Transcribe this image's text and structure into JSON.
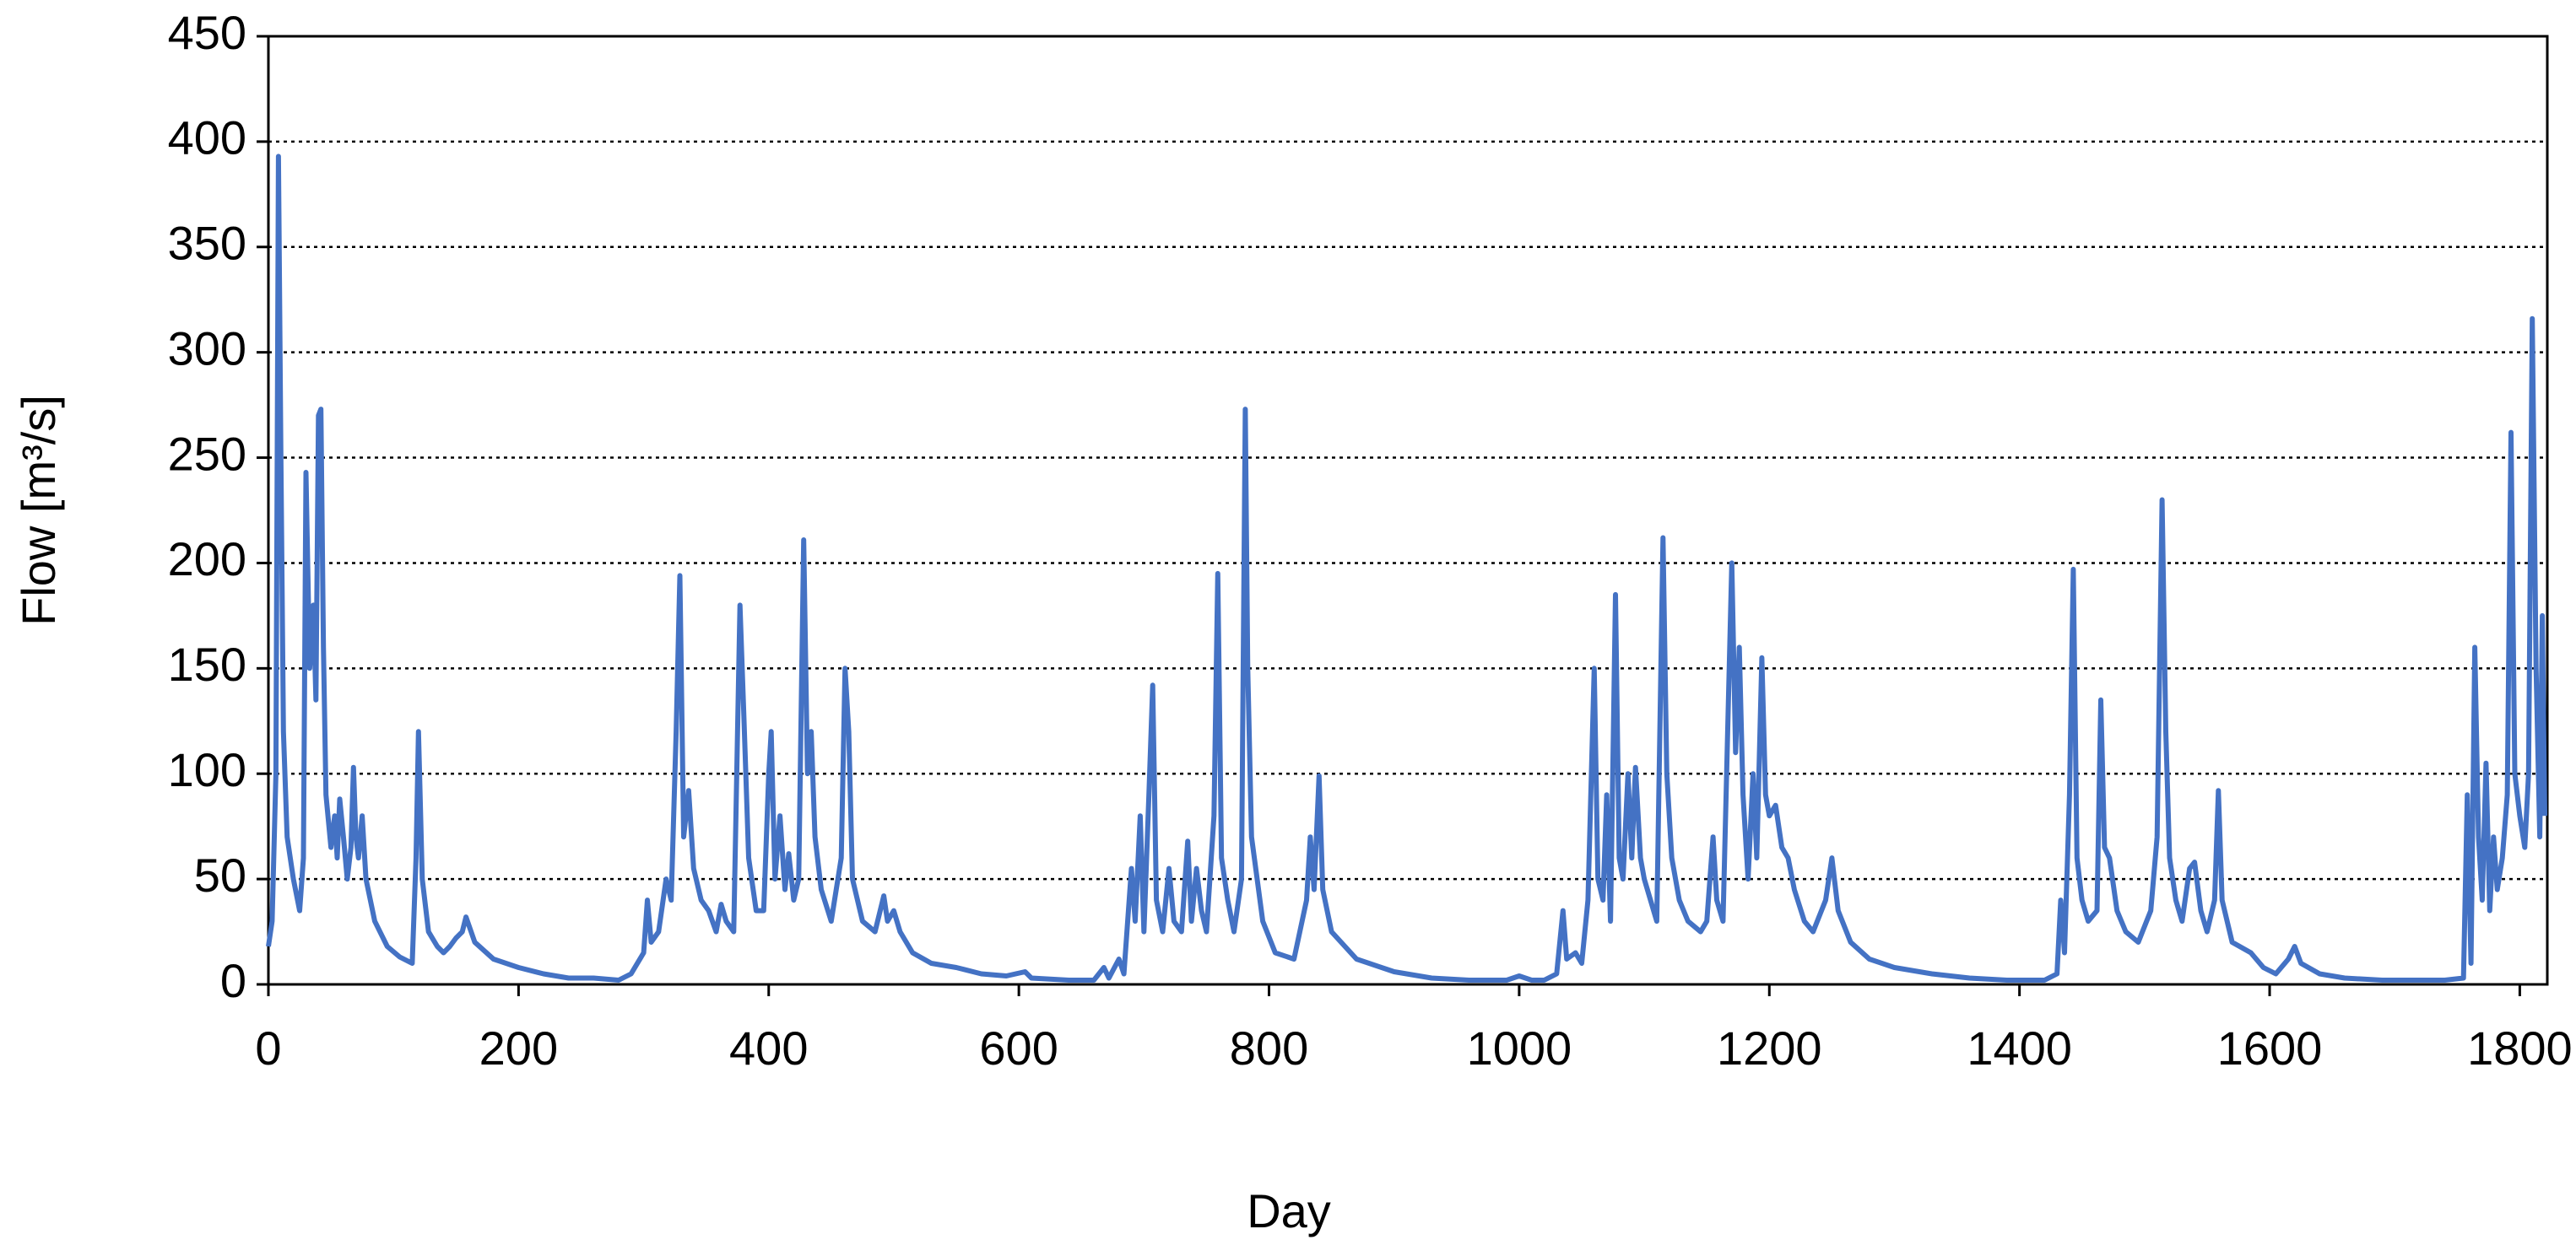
{
  "chart_data": {
    "type": "line",
    "x_label": "Day",
    "y_label": "Flow [m³/s]",
    "xlim": [
      0,
      1822
    ],
    "xticks": [
      0,
      200,
      400,
      600,
      800,
      1000,
      1200,
      1400,
      1600,
      1800
    ],
    "ylim": [
      0,
      450
    ],
    "yticks": [
      0,
      50,
      100,
      150,
      200,
      250,
      300,
      350,
      400,
      450
    ],
    "grid": true,
    "color": "#4472c4",
    "x": [
      0,
      3,
      6,
      8,
      10,
      12,
      15,
      20,
      25,
      28,
      30,
      33,
      36,
      38,
      40,
      42,
      44,
      46,
      50,
      53,
      55,
      57,
      60,
      63,
      66,
      68,
      70,
      72,
      75,
      78,
      85,
      95,
      105,
      115,
      118,
      120,
      123,
      128,
      135,
      140,
      145,
      150,
      155,
      158,
      165,
      180,
      200,
      220,
      240,
      260,
      280,
      290,
      300,
      303,
      306,
      312,
      318,
      322,
      326,
      329,
      332,
      336,
      340,
      346,
      352,
      358,
      362,
      366,
      372,
      377,
      380,
      384,
      390,
      396,
      400,
      402,
      405,
      409,
      413,
      416,
      420,
      424,
      428,
      431,
      434,
      437,
      442,
      450,
      458,
      461,
      464,
      467,
      475,
      485,
      492,
      495,
      500,
      505,
      515,
      530,
      550,
      570,
      590,
      605,
      610,
      640,
      660,
      668,
      672,
      680,
      684,
      690,
      693,
      697,
      700,
      704,
      707,
      710,
      715,
      720,
      724,
      730,
      735,
      738,
      742,
      746,
      750,
      756,
      759,
      762,
      767,
      772,
      778,
      781,
      783,
      786,
      795,
      805,
      820,
      830,
      833,
      836,
      840,
      843,
      850,
      870,
      900,
      930,
      960,
      990,
      1000,
      1010,
      1020,
      1030,
      1035,
      1038,
      1045,
      1050,
      1055,
      1060,
      1063,
      1067,
      1070,
      1073,
      1077,
      1080,
      1083,
      1087,
      1090,
      1093,
      1097,
      1100,
      1105,
      1110,
      1115,
      1118,
      1122,
      1128,
      1135,
      1145,
      1150,
      1155,
      1158,
      1163,
      1170,
      1173,
      1176,
      1179,
      1183,
      1187,
      1190,
      1194,
      1197,
      1200,
      1205,
      1210,
      1215,
      1220,
      1228,
      1235,
      1245,
      1250,
      1255,
      1265,
      1280,
      1300,
      1330,
      1360,
      1390,
      1420,
      1430,
      1433,
      1436,
      1440,
      1443,
      1446,
      1450,
      1455,
      1462,
      1465,
      1468,
      1472,
      1478,
      1485,
      1495,
      1505,
      1510,
      1514,
      1517,
      1520,
      1525,
      1530,
      1536,
      1540,
      1545,
      1550,
      1556,
      1559,
      1562,
      1570,
      1585,
      1595,
      1605,
      1615,
      1620,
      1625,
      1640,
      1660,
      1690,
      1720,
      1740,
      1755,
      1758,
      1761,
      1764,
      1767,
      1770,
      1773,
      1776,
      1779,
      1782,
      1786,
      1790,
      1793,
      1796,
      1800,
      1804,
      1807,
      1810,
      1813,
      1816,
      1818,
      1820
    ],
    "values": [
      18,
      30,
      100,
      393,
      250,
      120,
      70,
      50,
      35,
      60,
      243,
      150,
      180,
      135,
      270,
      273,
      160,
      90,
      65,
      80,
      60,
      88,
      70,
      50,
      65,
      103,
      70,
      60,
      80,
      50,
      30,
      18,
      13,
      10,
      60,
      120,
      50,
      25,
      18,
      15,
      18,
      22,
      25,
      32,
      20,
      12,
      8,
      5,
      3,
      3,
      2,
      5,
      15,
      40,
      20,
      25,
      50,
      40,
      120,
      194,
      70,
      92,
      55,
      40,
      35,
      25,
      38,
      30,
      25,
      180,
      130,
      60,
      35,
      35,
      100,
      120,
      50,
      80,
      45,
      62,
      40,
      50,
      211,
      100,
      120,
      70,
      45,
      30,
      60,
      150,
      120,
      50,
      30,
      25,
      42,
      30,
      35,
      25,
      15,
      10,
      8,
      5,
      4,
      6,
      3,
      2,
      2,
      8,
      3,
      12,
      5,
      55,
      30,
      80,
      25,
      90,
      142,
      40,
      25,
      55,
      30,
      25,
      68,
      30,
      55,
      35,
      25,
      80,
      195,
      60,
      40,
      25,
      50,
      273,
      150,
      70,
      30,
      15,
      12,
      40,
      70,
      45,
      99,
      45,
      25,
      12,
      6,
      3,
      2,
      2,
      4,
      2,
      2,
      5,
      35,
      12,
      15,
      10,
      40,
      150,
      50,
      40,
      90,
      30,
      185,
      60,
      50,
      100,
      60,
      103,
      60,
      50,
      40,
      30,
      212,
      100,
      60,
      40,
      30,
      25,
      30,
      70,
      40,
      30,
      200,
      110,
      160,
      90,
      50,
      100,
      60,
      155,
      90,
      80,
      85,
      65,
      60,
      45,
      30,
      25,
      40,
      60,
      35,
      20,
      12,
      8,
      5,
      3,
      2,
      2,
      5,
      40,
      15,
      90,
      197,
      60,
      40,
      30,
      35,
      135,
      65,
      60,
      35,
      25,
      20,
      35,
      70,
      230,
      120,
      60,
      40,
      30,
      55,
      58,
      35,
      25,
      40,
      92,
      40,
      20,
      15,
      8,
      5,
      12,
      18,
      10,
      5,
      3,
      2,
      2,
      2,
      3,
      90,
      10,
      160,
      70,
      40,
      105,
      35,
      70,
      45,
      60,
      90,
      262,
      100,
      80,
      65,
      100,
      316,
      150,
      70,
      175,
      80
    ]
  }
}
